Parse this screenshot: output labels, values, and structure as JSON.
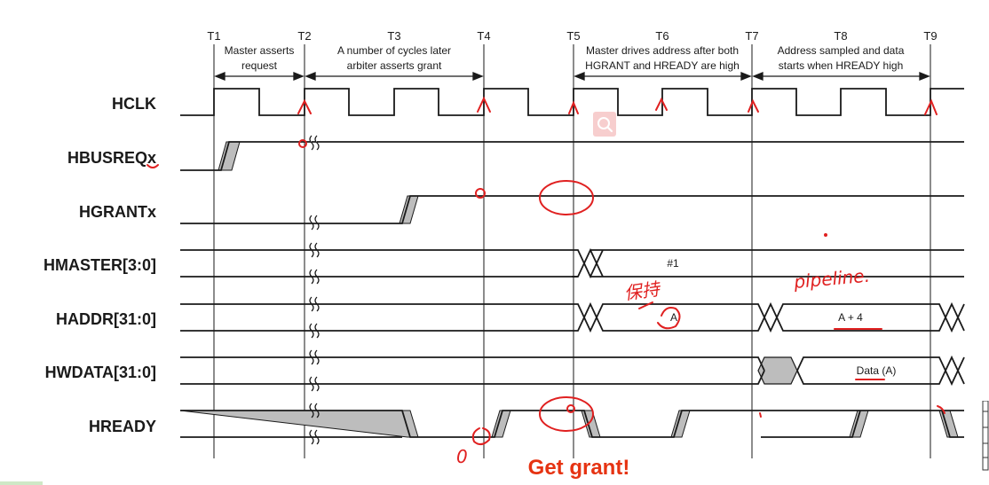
{
  "colors": {
    "ink": "#1a1a1a",
    "shade": "#bdbdbd",
    "annotation_red": "#e02020",
    "headline_red": "#e63312",
    "search_bg": "#f7c9c9"
  },
  "time_markers": [
    "T1",
    "T2",
    "T3",
    "T4",
    "T5",
    "T6",
    "T7",
    "T8",
    "T9"
  ],
  "phase_notes": [
    {
      "lines": [
        "Master asserts",
        "request"
      ]
    },
    {
      "lines": [
        "A number of cycles later",
        "arbiter asserts grant"
      ]
    },
    {
      "lines": [
        "Master drives address after both",
        "HGRANT and HREADY are high"
      ]
    },
    {
      "lines": [
        "Address sampled and data",
        "starts when HREADY high"
      ]
    }
  ],
  "signals": [
    "HCLK",
    "HBUSREQx",
    "HGRANTx",
    "HMASTER[3:0]",
    "HADDR[31:0]",
    "HWDATA[31:0]",
    "HREADY"
  ],
  "bus_values": {
    "hmaster": "#1",
    "haddr_a": "A",
    "haddr_a4": "A + 4",
    "hwdata": "Data (A)"
  },
  "handwritten": {
    "pipeline": "pipeline.",
    "keep": "保持",
    "zero": "0"
  },
  "headline": "Get grant!",
  "icons": {
    "search": "search-icon",
    "side": "sidebar-handle-icon"
  }
}
